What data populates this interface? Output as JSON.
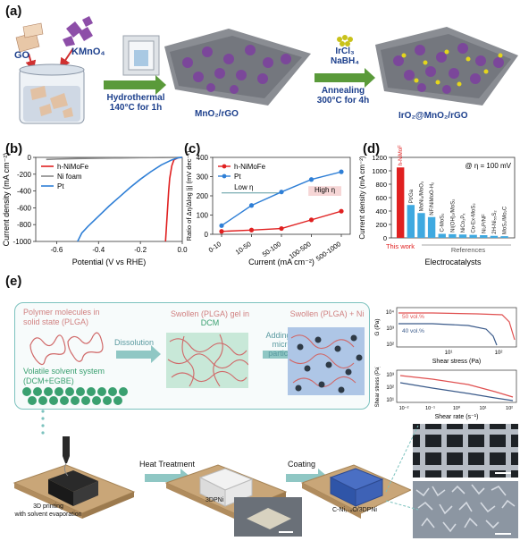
{
  "panel_a": {
    "label": "(a)",
    "go": "GO",
    "kmno4": "KMnO₄",
    "step1": "Hydrothermal",
    "step1b": "140°C for 1h",
    "product1": "MnO₂/rGO",
    "reagent1": "IrCl₃",
    "reagent2": "NaBH₄",
    "step2": "Annealing",
    "step2b": "300°C for 4h",
    "product2": "IrO₂@MnO₂/rGO"
  },
  "panel_b": {
    "label": "(b)"
  },
  "panel_c": {
    "label": "(c)"
  },
  "panel_d": {
    "label": "(d)"
  },
  "panel_e": {
    "label": "(e)",
    "polymer_title": "Polymer molecules in solid state (PLGA)",
    "solvent_title": "Volatile solvent system (DCM+EGBE)",
    "dissolution": "Dissolution",
    "swollen_gel": "Swollen (PLGA) gel in",
    "dcm": "DCM",
    "adding_ni": "Adding Ni",
    "micro_particles": "micro-particles",
    "swollen_ni": "Swollen (PLGA) + Ni",
    "printing1": "3D printing",
    "printing2": "with solvent evaporation",
    "heat": "Heat Treatment",
    "coating": "Coating",
    "label_3dpni": "3DPNi",
    "label_coated": "C-Ni₁₋ₓO/3DPNi"
  },
  "chart_data": [
    {
      "id": "b",
      "type": "line",
      "xlabel": "Potential (V vs RHE)",
      "ylabel": "Current density (mA cm⁻²)",
      "xlim": [
        -0.7,
        0.0
      ],
      "ylim": [
        -1000,
        0
      ],
      "xticks": [
        "-0.6",
        "-0.4",
        "-0.2",
        "0.0"
      ],
      "yticks": [
        "0",
        "-200",
        "-400",
        "-600",
        "-800",
        "-1000"
      ],
      "legend_position": "top-left",
      "series": [
        {
          "name": "h-NiMoFe",
          "color": "#e02020",
          "x": [
            0.0,
            -0.02,
            -0.04,
            -0.05,
            -0.06,
            -0.065,
            -0.07,
            -0.075,
            -0.08
          ],
          "y": [
            0,
            -5,
            -30,
            -100,
            -250,
            -400,
            -600,
            -800,
            -1000
          ]
        },
        {
          "name": "Ni foam",
          "color": "#888888",
          "x": [
            0.0,
            -0.1,
            -0.2,
            -0.3,
            -0.4,
            -0.5,
            -0.6,
            -0.65
          ],
          "y": [
            0,
            -2,
            -4,
            -7,
            -10,
            -14,
            -20,
            -25
          ]
        },
        {
          "name": "Pt",
          "color": "#2f7fd6",
          "x": [
            0.0,
            -0.02,
            -0.05,
            -0.1,
            -0.15,
            -0.2,
            -0.25,
            -0.3,
            -0.35,
            -0.4,
            -0.45,
            -0.48,
            -0.5
          ],
          "y": [
            0,
            -5,
            -30,
            -90,
            -170,
            -260,
            -360,
            -470,
            -580,
            -700,
            -820,
            -900,
            -1000
          ]
        }
      ]
    },
    {
      "id": "c",
      "type": "line",
      "xlabel": "Current (mA cm⁻²)",
      "ylabel": "Ratio of Δη/Δlog |j| (mV dec⁻¹)",
      "categories": [
        "0-10",
        "10-50",
        "50-100",
        "100-500",
        "500-1000"
      ],
      "ylim": [
        0,
        400
      ],
      "yticks": [
        "0",
        "100",
        "200",
        "300",
        "400"
      ],
      "legend_position": "top-left",
      "annotations": [
        "Low η",
        "High η"
      ],
      "series": [
        {
          "name": "h-NiMoFe",
          "color": "#e02020",
          "values": [
            15,
            22,
            30,
            75,
            120
          ]
        },
        {
          "name": "Pt",
          "color": "#2f7fd6",
          "values": [
            45,
            150,
            220,
            285,
            325
          ]
        }
      ]
    },
    {
      "id": "d",
      "type": "bar",
      "xlabel": "Electrocatalysts",
      "ylabel": "Current density (mA cm⁻²)",
      "ylim": [
        0,
        1200
      ],
      "yticks": [
        "0",
        "200",
        "400",
        "600",
        "800",
        "1000",
        "1200"
      ],
      "annotation": "@ η = 100 mV",
      "this_work": "This work",
      "references": "References",
      "categories": [
        "h-NiMoFe",
        "Pt/Ga",
        "MoNi₄/MoO₃",
        "NF/NiMoO-H₂",
        "C-MoS₂",
        "Ni(OH)₂/MoS₂",
        "NiCo₂Pₓ",
        "Co-Ex-MoS₂",
        "Ni₂P/NF",
        "2H-Ni₅₅S₂",
        "MoS₂/Mo₂C"
      ],
      "values": [
        1050,
        490,
        370,
        310,
        60,
        55,
        50,
        45,
        40,
        30,
        25
      ],
      "colors": [
        "#e02020",
        "#3fa9e0",
        "#3fa9e0",
        "#3fa9e0",
        "#3fa9e0",
        "#3fa9e0",
        "#3fa9e0",
        "#3fa9e0",
        "#3fa9e0",
        "#3fa9e0",
        "#3fa9e0"
      ]
    },
    {
      "id": "e-top",
      "type": "line",
      "xlabel": "Shear stress (Pa)",
      "ylabel": "G (Pa)",
      "yticks": [
        "10²",
        "10³",
        "10⁴"
      ],
      "xticks": [
        "10¹",
        "10²"
      ],
      "series": [
        {
          "name": "50 vol.%",
          "color": "#e05050"
        },
        {
          "name": "40 vol.%",
          "color": "#3a5a8a"
        }
      ]
    },
    {
      "id": "e-bottom",
      "type": "line",
      "xlabel": "Shear rate (s⁻¹)",
      "ylabel": "Shear stress (Pa)",
      "yticks": [
        "10¹",
        "10²",
        "10³"
      ],
      "xticks": [
        "10⁻²",
        "10⁻¹",
        "10⁰",
        "10¹",
        "10²"
      ],
      "series": [
        {
          "color": "#e05050"
        },
        {
          "color": "#3a5a8a"
        }
      ]
    }
  ]
}
